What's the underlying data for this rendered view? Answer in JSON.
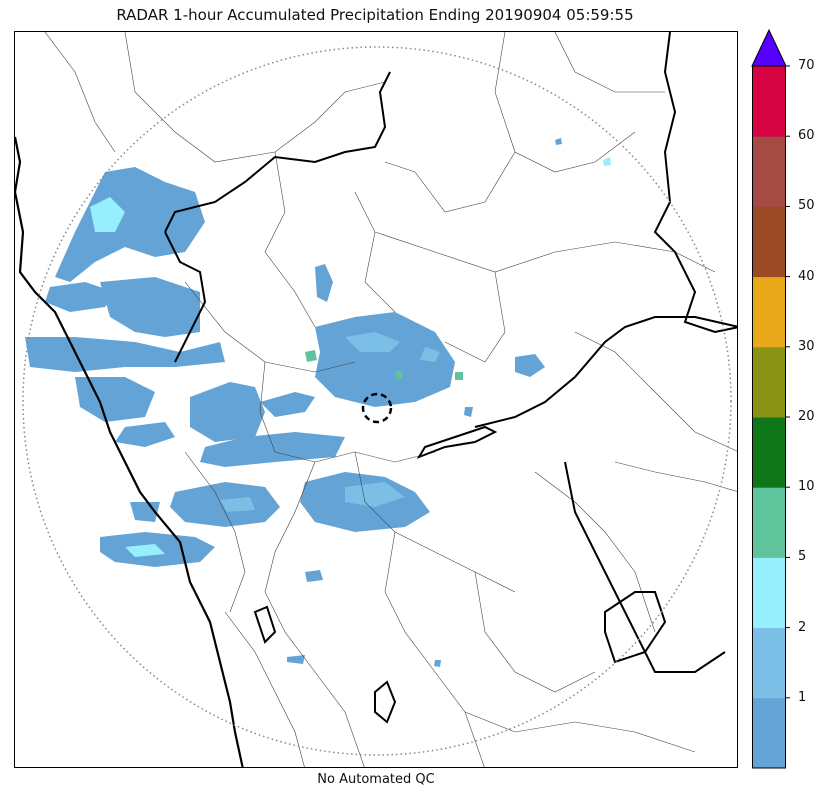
{
  "title": "RADAR 1-hour Accumulated Precipitation Ending 20190904 05:59:55",
  "footer_note": "No Automated QC",
  "colorbar": {
    "extend": "max",
    "extend_color": "#5500ff",
    "bins": [
      {
        "lower": 0,
        "upper": 1,
        "color": "#63a3d6"
      },
      {
        "lower": 1,
        "upper": 2,
        "color": "#7bbfe6"
      },
      {
        "lower": 2,
        "upper": 5,
        "color": "#97eefc"
      },
      {
        "lower": 5,
        "upper": 10,
        "color": "#5fc49b"
      },
      {
        "lower": 10,
        "upper": 20,
        "color": "#0f7619"
      },
      {
        "lower": 20,
        "upper": 30,
        "color": "#8b9317"
      },
      {
        "lower": 30,
        "upper": 40,
        "color": "#e9a91a"
      },
      {
        "lower": 40,
        "upper": 50,
        "color": "#9b4b25"
      },
      {
        "lower": 50,
        "upper": 60,
        "color": "#a64a44"
      },
      {
        "lower": 60,
        "upper": 70,
        "color": "#d50342"
      }
    ],
    "tick_labels": [
      "1",
      "2",
      "5",
      "10",
      "20",
      "30",
      "40",
      "50",
      "60",
      "70"
    ]
  },
  "map": {
    "radar_range_ring": "dotted",
    "radar_site_marker": "dashed-circle",
    "colors": {
      "coast": "#000000",
      "state_border": "#000000",
      "district_border": "#444444",
      "range_ring": "#888888"
    }
  }
}
